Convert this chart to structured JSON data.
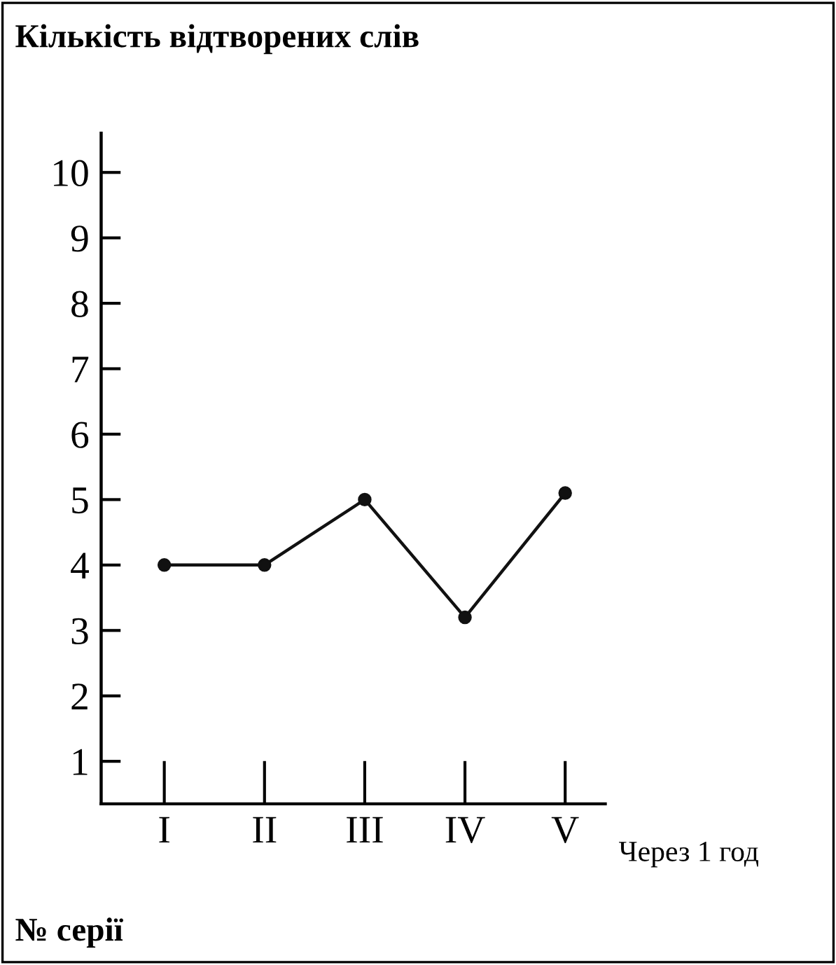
{
  "chart_data": {
    "type": "line",
    "title": "Кількість відтворених слів",
    "xlabel": "№ серії",
    "annotations": [
      "Через 1 год"
    ],
    "categories": [
      "I",
      "II",
      "III",
      "IV",
      "V"
    ],
    "series": [
      {
        "color": "#111111",
        "values": [
          4,
          4,
          5,
          3.2,
          5.1
        ]
      }
    ],
    "ylim": [
      0.35,
      10.6
    ],
    "yticks": [
      1,
      2,
      3,
      4,
      5,
      6,
      7,
      8,
      9,
      10
    ],
    "grid": false,
    "legend": false,
    "marker": "circle",
    "line_style": "solid"
  }
}
